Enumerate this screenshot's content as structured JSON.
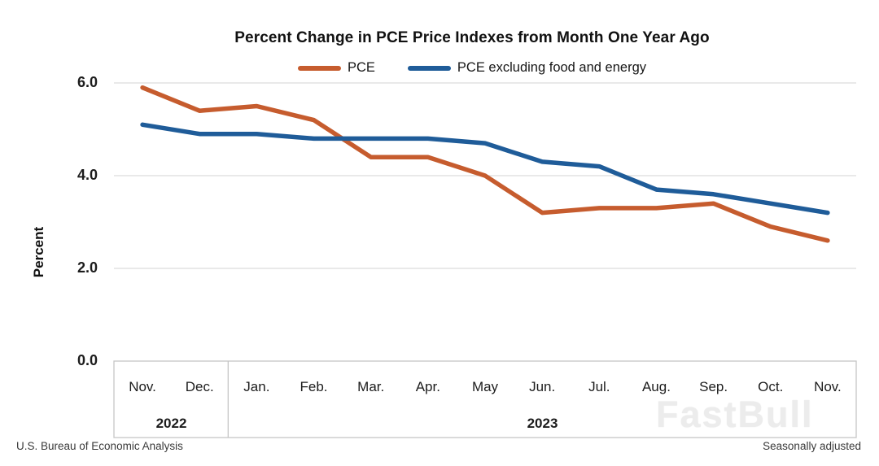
{
  "chart_data": {
    "type": "line",
    "title": "Percent Change in PCE Price Indexes from Month One Year Ago",
    "ylabel": "Percent",
    "ylim": [
      0,
      6
    ],
    "yticks": [
      0,
      2,
      4,
      6
    ],
    "ytick_labels": [
      "0.0",
      "2.0",
      "4.0",
      "6.0"
    ],
    "grid": "horizontal",
    "legend_position": "top",
    "categories": [
      "Nov.",
      "Dec.",
      "Jan.",
      "Feb.",
      "Mar.",
      "Apr.",
      "May",
      "Jun.",
      "Jul.",
      "Aug.",
      "Sep.",
      "Oct.",
      "Nov."
    ],
    "year_groups": [
      {
        "label": "2022",
        "start_index": 0,
        "end_index": 1
      },
      {
        "label": "2023",
        "start_index": 2,
        "end_index": 12
      }
    ],
    "series": [
      {
        "name": "PCE",
        "color": "#C65C2E",
        "values": [
          5.9,
          5.4,
          5.5,
          5.2,
          4.4,
          4.4,
          4.0,
          3.2,
          3.3,
          3.3,
          3.4,
          2.9,
          2.6
        ]
      },
      {
        "name": "PCE excluding food and energy",
        "color": "#1F5C99",
        "values": [
          5.1,
          4.9,
          4.9,
          4.8,
          4.8,
          4.8,
          4.7,
          4.3,
          4.2,
          3.7,
          3.6,
          3.4,
          3.2
        ]
      }
    ]
  },
  "colors": {
    "gridline": "#DCDCDC",
    "axis_frame": "#C6C6C6",
    "title_text": "#111111",
    "watermark_text": "#ECECEC"
  },
  "footer": {
    "source": "U.S. Bureau of Economic Analysis",
    "note": "Seasonally adjusted"
  },
  "watermark": "FastBull"
}
